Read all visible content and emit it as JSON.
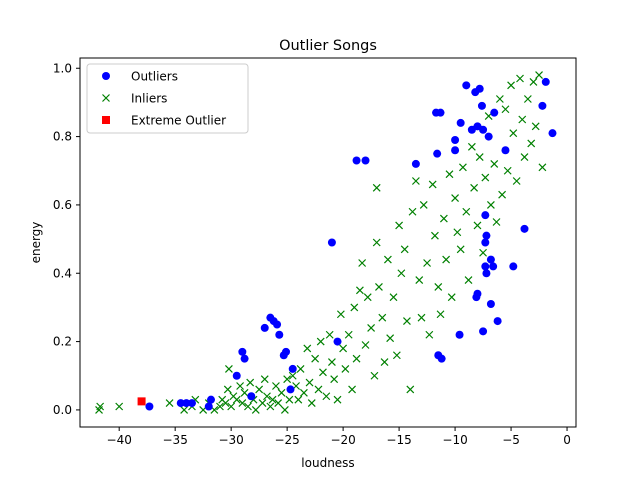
{
  "chart_data": {
    "type": "scatter",
    "title": "Outlier Songs",
    "xlabel": "loudness",
    "ylabel": "energy",
    "xlim": [
      -43.5,
      0.8
    ],
    "ylim": [
      -0.05,
      1.03
    ],
    "xticks": [
      -40,
      -35,
      -30,
      -25,
      -20,
      -15,
      -10,
      -5,
      0
    ],
    "xtick_labels": [
      "−40",
      "−35",
      "−30",
      "−25",
      "−20",
      "−15",
      "−10",
      "−5",
      "0"
    ],
    "yticks": [
      0.0,
      0.2,
      0.4,
      0.6,
      0.8,
      1.0
    ],
    "ytick_labels": [
      "0.0",
      "0.2",
      "0.4",
      "0.6",
      "0.8",
      "1.0"
    ],
    "grid": false,
    "legend_position": "top-left",
    "series": [
      {
        "name": "Outliers",
        "marker": "circle",
        "color": "#0000ff",
        "points": [
          [
            -37.3,
            0.01
          ],
          [
            -34.5,
            0.02
          ],
          [
            -34.0,
            0.02
          ],
          [
            -33.5,
            0.02
          ],
          [
            -32.0,
            0.01
          ],
          [
            -31.8,
            0.03
          ],
          [
            -29.5,
            0.1
          ],
          [
            -29.0,
            0.17
          ],
          [
            -28.8,
            0.15
          ],
          [
            -28.2,
            0.04
          ],
          [
            -27.0,
            0.24
          ],
          [
            -26.5,
            0.27
          ],
          [
            -26.2,
            0.26
          ],
          [
            -25.9,
            0.25
          ],
          [
            -25.7,
            0.22
          ],
          [
            -25.3,
            0.16
          ],
          [
            -25.1,
            0.17
          ],
          [
            -24.5,
            0.12
          ],
          [
            -24.7,
            0.06
          ],
          [
            -21.0,
            0.49
          ],
          [
            -20.5,
            0.2
          ],
          [
            -18.8,
            0.73
          ],
          [
            -18.0,
            0.73
          ],
          [
            -13.5,
            0.72
          ],
          [
            -11.7,
            0.87
          ],
          [
            -11.6,
            0.75
          ],
          [
            -11.3,
            0.87
          ],
          [
            -11.5,
            0.16
          ],
          [
            -11.2,
            0.15
          ],
          [
            -10.0,
            0.79
          ],
          [
            -10.0,
            0.76
          ],
          [
            -9.5,
            0.84
          ],
          [
            -9.6,
            0.22
          ],
          [
            -9.0,
            0.95
          ],
          [
            -8.5,
            0.82
          ],
          [
            -8.2,
            0.93
          ],
          [
            -8.0,
            0.83
          ],
          [
            -8.0,
            0.34
          ],
          [
            -8.1,
            0.33
          ],
          [
            -7.8,
            0.94
          ],
          [
            -7.6,
            0.89
          ],
          [
            -7.5,
            0.82
          ],
          [
            -7.3,
            0.57
          ],
          [
            -7.2,
            0.51
          ],
          [
            -7.3,
            0.49
          ],
          [
            -7.5,
            0.23
          ],
          [
            -7.3,
            0.42
          ],
          [
            -7.2,
            0.4
          ],
          [
            -7.0,
            0.8
          ],
          [
            -6.8,
            0.44
          ],
          [
            -6.6,
            0.42
          ],
          [
            -6.8,
            0.31
          ],
          [
            -6.5,
            0.87
          ],
          [
            -6.2,
            0.26
          ],
          [
            -5.5,
            0.76
          ],
          [
            -4.8,
            0.42
          ],
          [
            -3.8,
            0.53
          ],
          [
            -2.2,
            0.89
          ],
          [
            -1.9,
            0.96
          ],
          [
            -1.3,
            0.81
          ]
        ]
      },
      {
        "name": "Inliers",
        "marker": "x",
        "color": "#008000",
        "points": [
          [
            -41.8,
            0.0
          ],
          [
            -41.7,
            0.01
          ],
          [
            -40.0,
            0.01
          ],
          [
            -35.5,
            0.02
          ],
          [
            -34.2,
            0.0
          ],
          [
            -33.5,
            0.01
          ],
          [
            -33.2,
            0.03
          ],
          [
            -32.5,
            0.0
          ],
          [
            -32.0,
            0.02
          ],
          [
            -31.5,
            0.0
          ],
          [
            -31.0,
            0.01
          ],
          [
            -30.8,
            0.03
          ],
          [
            -30.5,
            0.02
          ],
          [
            -30.3,
            0.06
          ],
          [
            -30.2,
            0.12
          ],
          [
            -30.0,
            0.01
          ],
          [
            -29.8,
            0.04
          ],
          [
            -29.5,
            0.03
          ],
          [
            -29.2,
            0.07
          ],
          [
            -29.0,
            0.02
          ],
          [
            -28.8,
            0.05
          ],
          [
            -28.5,
            0.01
          ],
          [
            -28.3,
            0.08
          ],
          [
            -28.0,
            0.03
          ],
          [
            -27.8,
            0.0
          ],
          [
            -27.5,
            0.06
          ],
          [
            -27.2,
            0.02
          ],
          [
            -27.0,
            0.09
          ],
          [
            -26.8,
            0.04
          ],
          [
            -26.5,
            0.01
          ],
          [
            -26.3,
            0.03
          ],
          [
            -26.0,
            0.07
          ],
          [
            -25.8,
            0.02
          ],
          [
            -25.5,
            0.05
          ],
          [
            -25.2,
            0.0
          ],
          [
            -25.0,
            0.09
          ],
          [
            -24.8,
            0.03
          ],
          [
            -24.5,
            0.1
          ],
          [
            -24.2,
            0.07
          ],
          [
            -24.0,
            0.03
          ],
          [
            -23.8,
            0.12
          ],
          [
            -23.5,
            0.05
          ],
          [
            -23.2,
            0.18
          ],
          [
            -23.0,
            0.08
          ],
          [
            -22.8,
            0.02
          ],
          [
            -22.5,
            0.15
          ],
          [
            -22.2,
            0.06
          ],
          [
            -22.0,
            0.2
          ],
          [
            -21.8,
            0.11
          ],
          [
            -21.5,
            0.04
          ],
          [
            -21.2,
            0.22
          ],
          [
            -21.0,
            0.14
          ],
          [
            -20.8,
            0.09
          ],
          [
            -20.5,
            0.03
          ],
          [
            -20.2,
            0.28
          ],
          [
            -20.0,
            0.18
          ],
          [
            -19.8,
            0.12
          ],
          [
            -19.5,
            0.22
          ],
          [
            -19.2,
            0.06
          ],
          [
            -19.0,
            0.3
          ],
          [
            -18.8,
            0.15
          ],
          [
            -18.5,
            0.35
          ],
          [
            -18.3,
            0.43
          ],
          [
            -18.0,
            0.19
          ],
          [
            -17.8,
            0.33
          ],
          [
            -17.5,
            0.24
          ],
          [
            -17.2,
            0.1
          ],
          [
            -17.0,
            0.65
          ],
          [
            -17.0,
            0.49
          ],
          [
            -16.8,
            0.36
          ],
          [
            -16.5,
            0.27
          ],
          [
            -16.3,
            0.14
          ],
          [
            -16.0,
            0.44
          ],
          [
            -15.8,
            0.21
          ],
          [
            -15.5,
            0.33
          ],
          [
            -15.2,
            0.16
          ],
          [
            -15.0,
            0.54
          ],
          [
            -14.8,
            0.4
          ],
          [
            -14.5,
            0.47
          ],
          [
            -14.3,
            0.26
          ],
          [
            -14.0,
            0.06
          ],
          [
            -13.8,
            0.58
          ],
          [
            -13.5,
            0.67
          ],
          [
            -13.2,
            0.38
          ],
          [
            -13.0,
            0.27
          ],
          [
            -12.8,
            0.6
          ],
          [
            -12.5,
            0.43
          ],
          [
            -12.3,
            0.22
          ],
          [
            -12.0,
            0.66
          ],
          [
            -11.8,
            0.51
          ],
          [
            -11.5,
            0.36
          ],
          [
            -11.3,
            0.28
          ],
          [
            -11.0,
            0.56
          ],
          [
            -10.8,
            0.44
          ],
          [
            -10.5,
            0.69
          ],
          [
            -10.3,
            0.33
          ],
          [
            -10.0,
            0.62
          ],
          [
            -9.8,
            0.52
          ],
          [
            -9.5,
            0.47
          ],
          [
            -9.3,
            0.71
          ],
          [
            -9.0,
            0.58
          ],
          [
            -8.8,
            0.38
          ],
          [
            -8.5,
            0.77
          ],
          [
            -8.3,
            0.65
          ],
          [
            -8.0,
            0.54
          ],
          [
            -7.8,
            0.74
          ],
          [
            -7.5,
            0.46
          ],
          [
            -7.3,
            0.68
          ],
          [
            -7.0,
            0.86
          ],
          [
            -6.8,
            0.6
          ],
          [
            -6.5,
            0.72
          ],
          [
            -6.3,
            0.55
          ],
          [
            -6.0,
            0.91
          ],
          [
            -5.8,
            0.63
          ],
          [
            -5.5,
            0.88
          ],
          [
            -5.3,
            0.7
          ],
          [
            -5.0,
            0.95
          ],
          [
            -4.8,
            0.81
          ],
          [
            -4.5,
            0.67
          ],
          [
            -4.2,
            0.97
          ],
          [
            -4.0,
            0.85
          ],
          [
            -3.8,
            0.74
          ],
          [
            -3.5,
            0.91
          ],
          [
            -3.2,
            0.78
          ],
          [
            -3.0,
            0.96
          ],
          [
            -2.8,
            0.83
          ],
          [
            -2.5,
            0.98
          ],
          [
            -2.2,
            0.71
          ]
        ]
      },
      {
        "name": "Extreme Outlier",
        "marker": "square",
        "color": "#ff0000",
        "points": [
          [
            -38.0,
            0.025
          ]
        ]
      }
    ]
  }
}
